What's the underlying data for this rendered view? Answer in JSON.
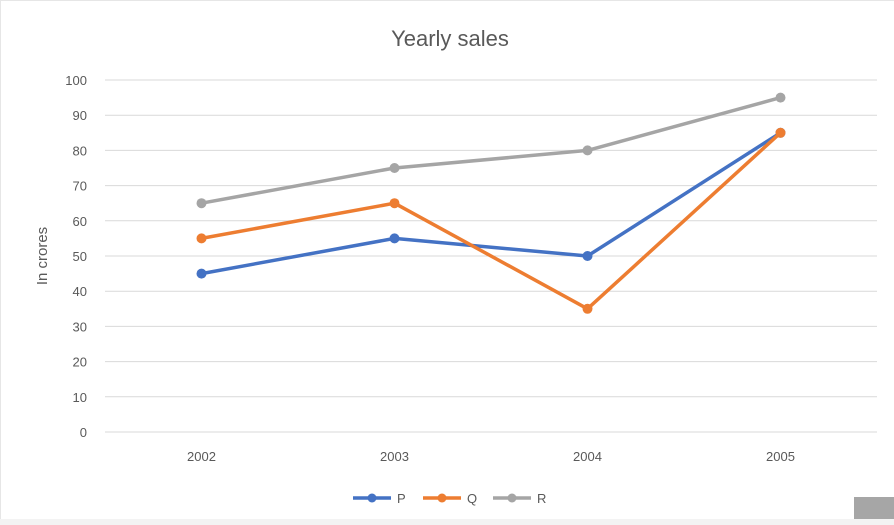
{
  "chart_data": {
    "type": "line",
    "title": "Yearly sales",
    "xlabel": "",
    "ylabel": "In crores",
    "categories": [
      "2002",
      "2003",
      "2004",
      "2005"
    ],
    "ylim": [
      0,
      100
    ],
    "yticks": [
      0,
      10,
      20,
      30,
      40,
      50,
      60,
      70,
      80,
      90,
      100
    ],
    "grid": true,
    "legend_position": "bottom",
    "series": [
      {
        "name": "P",
        "values": [
          45,
          55,
          50,
          85
        ],
        "color": "#4472c4"
      },
      {
        "name": "Q",
        "values": [
          55,
          65,
          35,
          85
        ],
        "color": "#ed7d31"
      },
      {
        "name": "R",
        "values": [
          65,
          75,
          80,
          95
        ],
        "color": "#a5a5a5"
      }
    ]
  }
}
